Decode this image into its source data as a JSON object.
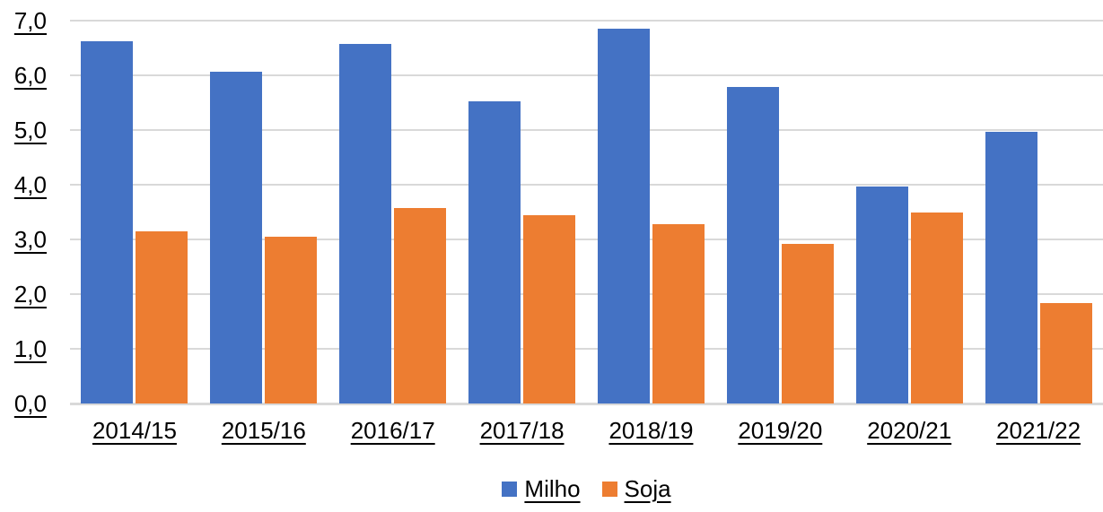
{
  "page": {
    "background": "#FFFFFF"
  },
  "chart_data": {
    "type": "bar",
    "title": "",
    "xlabel": "",
    "ylabel": "",
    "categories": [
      "2014/15",
      "2015/16",
      "2016/17",
      "2017/18",
      "2018/19",
      "2019/20",
      "2020/21",
      "2021/22"
    ],
    "series": [
      {
        "name": "Milho",
        "color": "#4472C4",
        "values": [
          6.62,
          6.07,
          6.58,
          5.52,
          6.86,
          5.78,
          3.96,
          4.96
        ]
      },
      {
        "name": "Soja",
        "color": "#ED7D31",
        "values": [
          3.15,
          3.05,
          3.58,
          3.45,
          3.28,
          2.92,
          3.49,
          1.84
        ]
      }
    ],
    "ylim": [
      0,
      7
    ],
    "ytick_step": 1.0,
    "ytick_labels": [
      "0,0",
      "1,0",
      "2,0",
      "3,0",
      "4,0",
      "5,0",
      "6,0",
      "7,0"
    ],
    "decimal_separator": ",",
    "grid": true,
    "gridline_color": "#D9D9D9",
    "text_color": "#000000",
    "axis_text_underlined": true,
    "legend_position": "bottom"
  }
}
